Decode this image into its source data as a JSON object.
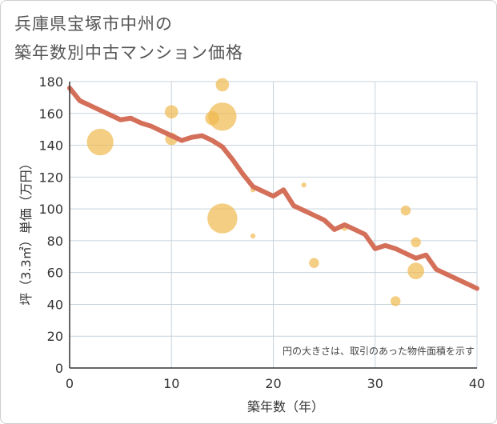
{
  "title_line1": "兵庫県宝塚市中州の",
  "title_line2": "築年数別中古マンション価格",
  "chart_data": {
    "type": "scatter",
    "xlabel": "築年数（年）",
    "ylabel": "坪（3.3㎡）単価（万円）",
    "xlim": [
      0,
      40
    ],
    "ylim": [
      0,
      180
    ],
    "xticks": [
      0,
      10,
      20,
      30,
      40
    ],
    "yticks": [
      0,
      20,
      40,
      60,
      80,
      100,
      120,
      140,
      160,
      180
    ],
    "grid": true,
    "note": "円の大きさは、取引のあった物件面積を示す",
    "colors": {
      "line": "#d4705a",
      "bubble": "#f0b94e",
      "grid": "#c8d3dc",
      "axis": "#333333"
    },
    "scatter": [
      {
        "x": 3,
        "y": 142,
        "size": 3.2
      },
      {
        "x": 10,
        "y": 161,
        "size": 1.6
      },
      {
        "x": 10,
        "y": 144,
        "size": 1.5
      },
      {
        "x": 14,
        "y": 157,
        "size": 1.7
      },
      {
        "x": 15,
        "y": 178,
        "size": 1.6
      },
      {
        "x": 15,
        "y": 158,
        "size": 3.4
      },
      {
        "x": 15,
        "y": 94,
        "size": 3.6
      },
      {
        "x": 18,
        "y": 112,
        "size": 0.6
      },
      {
        "x": 18,
        "y": 83,
        "size": 0.6
      },
      {
        "x": 23,
        "y": 115,
        "size": 0.6
      },
      {
        "x": 24,
        "y": 66,
        "size": 1.2
      },
      {
        "x": 27,
        "y": 88,
        "size": 0.7
      },
      {
        "x": 32,
        "y": 42,
        "size": 1.2
      },
      {
        "x": 33,
        "y": 99,
        "size": 1.2
      },
      {
        "x": 34,
        "y": 79,
        "size": 1.2
      },
      {
        "x": 34,
        "y": 61,
        "size": 2.0
      }
    ],
    "line": {
      "x": [
        0,
        1,
        2,
        3,
        4,
        5,
        6,
        7,
        8,
        9,
        10,
        11,
        12,
        13,
        14,
        15,
        16,
        17,
        18,
        19,
        20,
        21,
        22,
        23,
        24,
        25,
        26,
        27,
        28,
        29,
        30,
        31,
        32,
        33,
        34,
        35,
        36,
        37,
        38,
        39,
        40
      ],
      "y": [
        176,
        168,
        165,
        162,
        159,
        156,
        157,
        154,
        152,
        149,
        146,
        143,
        145,
        146,
        143,
        139,
        131,
        122,
        114,
        111,
        108,
        112,
        102,
        99,
        96,
        93,
        87,
        90,
        87,
        84,
        75,
        77,
        75,
        72,
        69,
        71,
        62,
        59,
        56,
        53,
        50
      ]
    }
  }
}
